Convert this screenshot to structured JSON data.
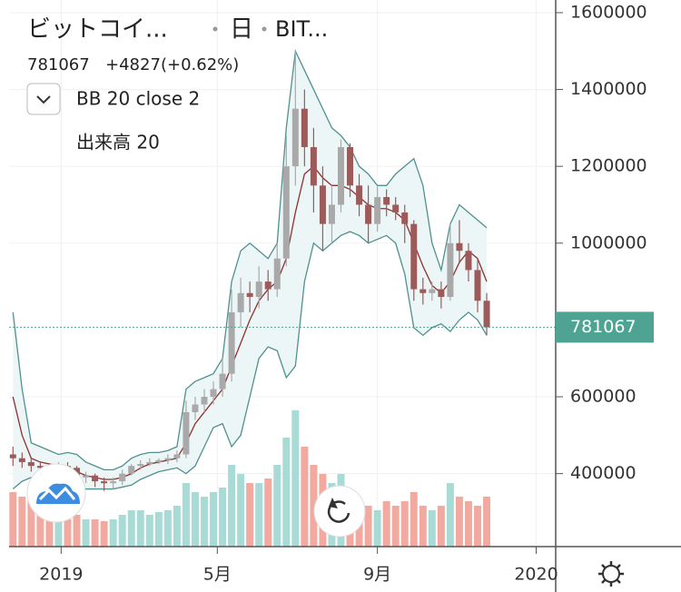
{
  "header": {
    "title": "ビットコイ...",
    "interval": "日",
    "exchange": "BIT...",
    "change": "+4827",
    "change_pct": "(+0.62%)"
  },
  "indicators": [
    "BB 20 close 2",
    "出来高 20"
  ],
  "chart_data": {
    "type": "candlestick",
    "x": [
      -37,
      -30,
      -23,
      -16,
      -9,
      -2,
      5,
      12,
      19,
      26,
      33,
      40,
      47,
      54,
      61,
      68,
      75,
      82,
      89,
      96,
      103,
      110,
      117,
      124,
      131,
      138,
      145,
      152,
      159,
      166,
      173,
      180,
      187,
      194,
      201,
      208,
      215,
      222,
      229,
      236,
      243,
      250,
      257,
      264,
      271,
      278,
      285,
      292,
      299,
      306,
      313,
      320,
      327
    ],
    "open": [
      450000,
      440000,
      430000,
      420000,
      415000,
      405000,
      420000,
      415000,
      390000,
      395000,
      380000,
      375000,
      380000,
      400000,
      420000,
      425000,
      430000,
      435000,
      440000,
      450000,
      560000,
      580000,
      600000,
      620000,
      660000,
      820000,
      870000,
      860000,
      900000,
      880000,
      960000,
      1200000,
      1350000,
      1250000,
      1150000,
      1050000,
      1100000,
      1250000,
      1150000,
      1100000,
      1050000,
      1120000,
      1100000,
      1080000,
      1050000,
      880000,
      870000,
      880000,
      860000,
      1000000,
      980000,
      930000,
      850000
    ],
    "high": [
      470000,
      455000,
      440000,
      430000,
      425000,
      430000,
      430000,
      420000,
      405000,
      400000,
      390000,
      390000,
      410000,
      425000,
      435000,
      440000,
      440000,
      450000,
      460000,
      590000,
      600000,
      620000,
      640000,
      700000,
      880000,
      910000,
      900000,
      940000,
      930000,
      1000000,
      1280000,
      1500000,
      1400000,
      1300000,
      1200000,
      1150000,
      1270000,
      1260000,
      1180000,
      1150000,
      1150000,
      1140000,
      1120000,
      1100000,
      1060000,
      910000,
      900000,
      900000,
      1050000,
      1060000,
      1000000,
      960000,
      870000
    ],
    "low": [
      420000,
      415000,
      405000,
      400000,
      390000,
      395000,
      395000,
      370000,
      375000,
      365000,
      355000,
      360000,
      370000,
      395000,
      410000,
      420000,
      425000,
      425000,
      430000,
      440000,
      540000,
      560000,
      580000,
      600000,
      640000,
      780000,
      820000,
      830000,
      850000,
      860000,
      940000,
      1150000,
      1200000,
      1080000,
      980000,
      1000000,
      1080000,
      1120000,
      1070000,
      1000000,
      1030000,
      1070000,
      1060000,
      1000000,
      850000,
      840000,
      850000,
      830000,
      850000,
      950000,
      900000,
      820000,
      760000
    ],
    "close": [
      440000,
      430000,
      420000,
      415000,
      405000,
      420000,
      415000,
      390000,
      395000,
      380000,
      375000,
      380000,
      400000,
      420000,
      425000,
      430000,
      435000,
      440000,
      450000,
      560000,
      580000,
      600000,
      620000,
      660000,
      820000,
      870000,
      860000,
      900000,
      880000,
      960000,
      1200000,
      1350000,
      1250000,
      1150000,
      1050000,
      1100000,
      1250000,
      1150000,
      1100000,
      1050000,
      1120000,
      1100000,
      1080000,
      1050000,
      880000,
      870000,
      880000,
      860000,
      1000000,
      980000,
      930000,
      850000,
      781067
    ],
    "volume": [
      60,
      55,
      50,
      45,
      40,
      35,
      30,
      35,
      30,
      30,
      28,
      30,
      35,
      40,
      40,
      35,
      38,
      40,
      45,
      70,
      60,
      55,
      60,
      65,
      90,
      80,
      70,
      70,
      75,
      90,
      120,
      150,
      110,
      90,
      80,
      70,
      80,
      60,
      50,
      45,
      40,
      50,
      45,
      50,
      60,
      45,
      40,
      45,
      70,
      55,
      50,
      45,
      55
    ],
    "bb_upper": [
      820000,
      620000,
      480000,
      470000,
      460000,
      450000,
      455000,
      450000,
      430000,
      420000,
      410000,
      410000,
      420000,
      440000,
      450000,
      455000,
      455000,
      460000,
      470000,
      620000,
      640000,
      650000,
      660000,
      700000,
      900000,
      980000,
      1000000,
      980000,
      960000,
      1000000,
      1300000,
      1500000,
      1450000,
      1400000,
      1350000,
      1300000,
      1280000,
      1250000,
      1200000,
      1180000,
      1150000,
      1150000,
      1180000,
      1200000,
      1220000,
      1150000,
      1000000,
      930000,
      1050000,
      1100000,
      1080000,
      1060000,
      1040000
    ],
    "bb_middle": [
      600000,
      500000,
      440000,
      430000,
      425000,
      420000,
      415000,
      405000,
      395000,
      390000,
      385000,
      385000,
      390000,
      400000,
      415000,
      425000,
      430000,
      435000,
      440000,
      480000,
      530000,
      560000,
      590000,
      620000,
      680000,
      740000,
      800000,
      850000,
      880000,
      900000,
      960000,
      1080000,
      1180000,
      1200000,
      1170000,
      1150000,
      1150000,
      1140000,
      1120000,
      1100000,
      1090000,
      1090000,
      1080000,
      1060000,
      1000000,
      940000,
      890000,
      870000,
      900000,
      950000,
      980000,
      960000,
      900000
    ],
    "bb_lower": [
      360000,
      380000,
      390000,
      385000,
      385000,
      385000,
      380000,
      365000,
      360000,
      360000,
      360000,
      360000,
      365000,
      370000,
      385000,
      395000,
      405000,
      410000,
      415000,
      400000,
      420000,
      470000,
      520000,
      530000,
      470000,
      500000,
      600000,
      700000,
      730000,
      720000,
      650000,
      680000,
      900000,
      1000000,
      980000,
      1000000,
      1020000,
      1030000,
      1020000,
      1000000,
      1010000,
      1020000,
      1000000,
      920000,
      780000,
      760000,
      780000,
      790000,
      770000,
      800000,
      820000,
      800000,
      760000
    ],
    "last_price": 781067,
    "xlim": [
      -40,
      380
    ],
    "xticks": [
      {
        "value": 0,
        "label": "2019"
      },
      {
        "value": 120,
        "label": "5月"
      },
      {
        "value": 243,
        "label": "9月"
      },
      {
        "value": 365,
        "label": "2020"
      }
    ],
    "ylim": [
      210000,
      1633000
    ],
    "yticks": [
      400000,
      600000,
      1000000,
      1200000,
      1400000,
      1600000
    ],
    "grid": true,
    "up_color": "#a9a9a9",
    "down_color": "#9c5a5a",
    "volume_up_color": "#a8dbd5",
    "volume_down_color": "#f2aaa0",
    "band_color": "#4f9090",
    "band_fill": "#edf6f6",
    "middle_color": "#8f2f2f",
    "accent_color": "#4fa393"
  }
}
